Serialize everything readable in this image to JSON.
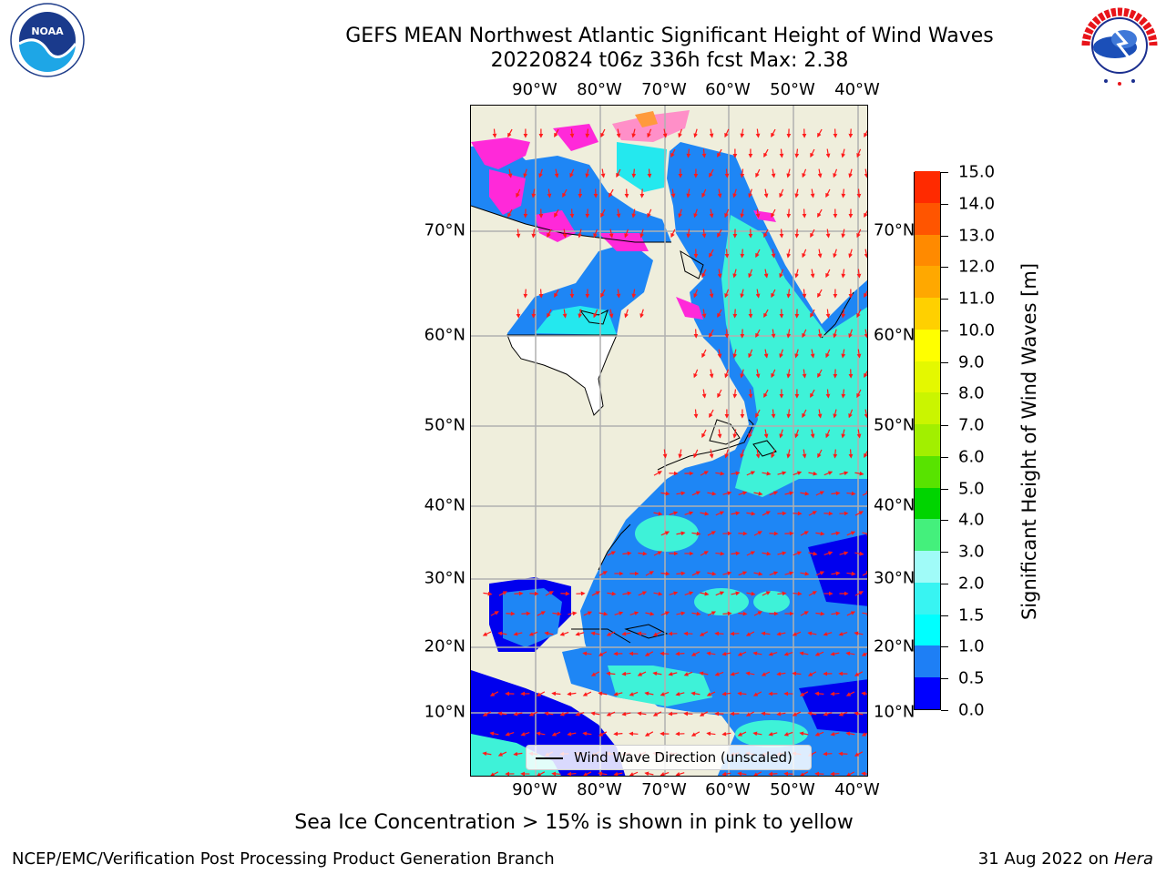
{
  "title": {
    "line1": "GEFS MEAN Northwest Atlantic Significant Height of Wind Waves",
    "line2": "20220824 t06z 336h fcst   Max: 2.38"
  },
  "map": {
    "lon_ticks": [
      "90°W",
      "80°W",
      "70°W",
      "60°W",
      "50°W",
      "40°W"
    ],
    "lat_ticks": [
      "70°N",
      "60°N",
      "50°N",
      "40°N",
      "30°N",
      "20°N",
      "10°N"
    ],
    "land_color": "#efeedc",
    "ocean_colors": {
      "deep": "#0000ee",
      "mid": "#1e86f5",
      "light": "#24e8ee",
      "pale": "#3ef2d8"
    },
    "ice_colors": [
      "#ff29d9",
      "#ff8fc8",
      "#ff9a3c"
    ],
    "arrow_color": "#ff1a1a"
  },
  "legend": {
    "label": "Wind Wave Direction (unscaled)"
  },
  "colorbar": {
    "title": "Significant Height of Wind Waves [m]",
    "levels": [
      "0.0",
      "0.5",
      "1.0",
      "1.5",
      "2.0",
      "3.0",
      "4.0",
      "5.0",
      "6.0",
      "7.0",
      "8.0",
      "9.0",
      "10.0",
      "11.0",
      "12.0",
      "13.0",
      "14.0",
      "15.0"
    ],
    "colors": [
      "#0000ff",
      "#1e7ff5",
      "#00ffff",
      "#38f4f2",
      "#a0fbf8",
      "#44f07c",
      "#00d400",
      "#58e300",
      "#a2ef00",
      "#caf500",
      "#e4f800",
      "#ffff00",
      "#ffd000",
      "#ffa800",
      "#ff8a00",
      "#ff5500",
      "#ff2a00"
    ]
  },
  "caption": "Sea Ice Concentration > 15% is shown in pink to yellow",
  "credits": {
    "left": "NCEP/EMC/Verification Post Processing Product Generation Branch",
    "date": "31 Aug 2022 on",
    "host": "Hera"
  },
  "logos": {
    "noaa_text": "NOAA",
    "noaa_ring": "NATIONAL OCEANIC AND ATMOSPHERIC ADMINISTRATION · U.S. DEPARTMENT OF COMMERCE",
    "nws_ring": "NATIONAL WEATHER SERVICE"
  }
}
